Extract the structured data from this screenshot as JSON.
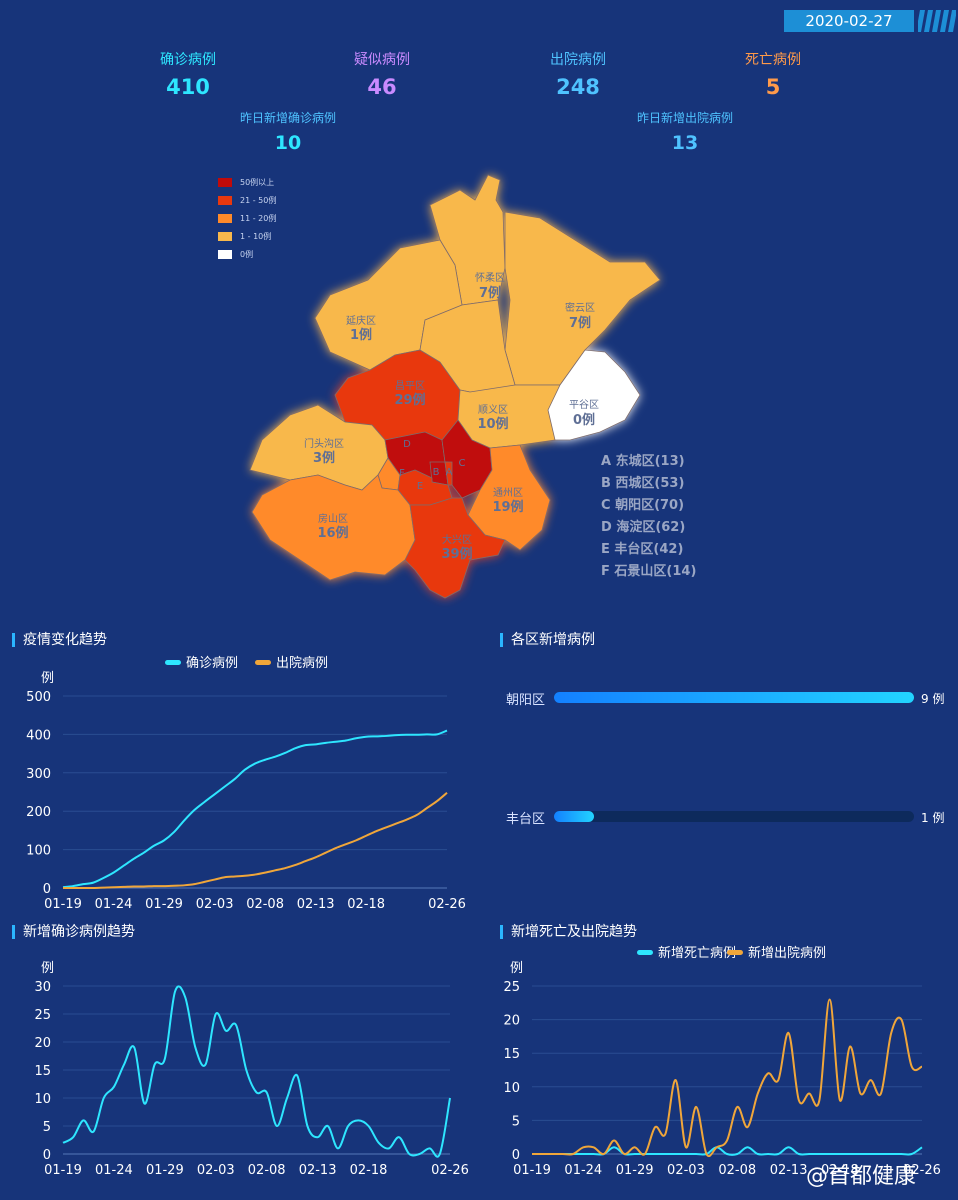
{
  "date": "2020-02-27",
  "stats": [
    {
      "label": "确诊病例",
      "value": "410",
      "label_color": "#2ee6ff",
      "value_color": "#2ee6ff"
    },
    {
      "label": "疑似病例",
      "value": "46",
      "label_color": "#c98bff",
      "value_color": "#c98bff"
    },
    {
      "label": "出院病例",
      "value": "248",
      "label_color": "#4fc3ff",
      "value_color": "#4fc3ff"
    },
    {
      "label": "死亡病例",
      "value": "5",
      "label_color": "#ff9a4a",
      "value_color": "#ff9a4a"
    }
  ],
  "new_stats": [
    {
      "label": "昨日新增确诊病例",
      "value": "10"
    },
    {
      "label": "昨日新增出院病例",
      "value": "13"
    }
  ],
  "map": {
    "legend": [
      {
        "label": "50例以上",
        "color": "#c00a0a"
      },
      {
        "label": "21 - 50例",
        "color": "#e8380f"
      },
      {
        "label": "11 - 20例",
        "color": "#ff8a2a"
      },
      {
        "label": "1 - 10例",
        "color": "#f8b84c"
      },
      {
        "label": "0例",
        "color": "#ffffff"
      }
    ],
    "districts": [
      {
        "name": "怀柔区",
        "value": "7例"
      },
      {
        "name": "密云区",
        "value": "7例"
      },
      {
        "name": "延庆区",
        "value": "1例"
      },
      {
        "name": "昌平区",
        "value": "29例"
      },
      {
        "name": "平谷区",
        "value": "0例"
      },
      {
        "name": "顺义区",
        "value": "10例"
      },
      {
        "name": "门头沟区",
        "value": "3例"
      },
      {
        "name": "通州区",
        "value": "19例"
      },
      {
        "name": "房山区",
        "value": "16例"
      },
      {
        "name": "大兴区",
        "value": "39例"
      }
    ],
    "city_letters": [
      "A",
      "B",
      "C",
      "D",
      "E",
      "F"
    ],
    "city_key": [
      "A 东城区(13)",
      "B 西城区(53)",
      "C 朝阳区(70)",
      "D 海淀区(62)",
      "E 丰台区(42)",
      "F 石景山区(14)"
    ]
  },
  "sections": {
    "trend": "疫情变化趋势",
    "district_new": "各区新增病例",
    "new_confirmed": "新增确诊病例趋势",
    "new_death_discharge": "新增死亡及出院趋势"
  },
  "district_bars": [
    {
      "name": "朝阳区",
      "value": 9,
      "label": "9 例",
      "max": 9
    },
    {
      "name": "丰台区",
      "value": 1,
      "label": "1 例",
      "max": 9
    }
  ],
  "watermark": "@首都健康",
  "chart_data": [
    {
      "type": "line",
      "title": "疫情变化趋势",
      "ylabel": "例",
      "ylim": [
        0,
        500
      ],
      "yticks": [
        0,
        100,
        200,
        300,
        400,
        500
      ],
      "xticks": [
        "01-19",
        "01-24",
        "01-29",
        "02-03",
        "02-08",
        "02-13",
        "02-18",
        "02-26"
      ],
      "x": [
        "01-19",
        "01-20",
        "01-21",
        "01-22",
        "01-23",
        "01-24",
        "01-25",
        "01-26",
        "01-27",
        "01-28",
        "01-29",
        "01-30",
        "01-31",
        "02-01",
        "02-02",
        "02-03",
        "02-04",
        "02-05",
        "02-06",
        "02-07",
        "02-08",
        "02-09",
        "02-10",
        "02-11",
        "02-12",
        "02-13",
        "02-14",
        "02-15",
        "02-16",
        "02-17",
        "02-18",
        "02-19",
        "02-20",
        "02-21",
        "02-22",
        "02-23",
        "02-24",
        "02-25",
        "02-26"
      ],
      "series": [
        {
          "name": "确诊病例",
          "color": "#2ee6ff",
          "values": [
            2,
            5,
            10,
            14,
            26,
            40,
            58,
            76,
            92,
            110,
            124,
            146,
            176,
            203,
            224,
            244,
            264,
            284,
            308,
            324,
            334,
            342,
            352,
            364,
            372,
            374,
            378,
            381,
            384,
            390,
            394,
            395,
            396,
            398,
            399,
            399,
            400,
            400,
            410
          ]
        },
        {
          "name": "出院病例",
          "color": "#f0a63a",
          "values": [
            0,
            0,
            0,
            0,
            1,
            2,
            3,
            4,
            4,
            5,
            5,
            6,
            7,
            10,
            16,
            22,
            28,
            30,
            32,
            35,
            40,
            46,
            52,
            60,
            70,
            80,
            92,
            104,
            114,
            124,
            136,
            148,
            158,
            168,
            178,
            190,
            208,
            226,
            248
          ]
        }
      ]
    },
    {
      "type": "bar",
      "title": "各区新增病例",
      "categories": [
        "朝阳区",
        "丰台区"
      ],
      "values": [
        9,
        1
      ]
    },
    {
      "type": "line",
      "title": "新增确诊病例趋势",
      "ylabel": "例",
      "ylim": [
        0,
        30
      ],
      "yticks": [
        0,
        5,
        10,
        15,
        20,
        25,
        30
      ],
      "xticks": [
        "01-19",
        "01-24",
        "01-29",
        "02-03",
        "02-08",
        "02-13",
        "02-18",
        "02-26"
      ],
      "x": [
        "01-19",
        "01-20",
        "01-21",
        "01-22",
        "01-23",
        "01-24",
        "01-25",
        "01-26",
        "01-27",
        "01-28",
        "01-29",
        "01-30",
        "01-31",
        "02-01",
        "02-02",
        "02-03",
        "02-04",
        "02-05",
        "02-06",
        "02-07",
        "02-08",
        "02-09",
        "02-10",
        "02-11",
        "02-12",
        "02-13",
        "02-14",
        "02-15",
        "02-16",
        "02-17",
        "02-18",
        "02-19",
        "02-20",
        "02-21",
        "02-22",
        "02-23",
        "02-24",
        "02-25",
        "02-26"
      ],
      "series": [
        {
          "name": "新增确诊病例",
          "color": "#2ee6ff",
          "values": [
            2,
            3,
            6,
            4,
            10,
            12,
            16,
            19,
            9,
            16,
            17,
            29,
            28,
            19,
            16,
            25,
            22,
            23,
            15,
            11,
            11,
            5,
            10,
            14,
            5,
            3,
            5,
            1,
            5,
            6,
            5,
            2,
            1,
            3,
            0,
            0,
            1,
            0,
            10
          ]
        }
      ]
    },
    {
      "type": "line",
      "title": "新增死亡及出院趋势",
      "ylabel": "例",
      "ylim": [
        0,
        25
      ],
      "yticks": [
        0,
        5,
        10,
        15,
        20,
        25
      ],
      "xticks": [
        "01-19",
        "01-24",
        "01-29",
        "02-03",
        "02-08",
        "02-13",
        "02-18",
        "02-26"
      ],
      "x": [
        "01-19",
        "01-20",
        "01-21",
        "01-22",
        "01-23",
        "01-24",
        "01-25",
        "01-26",
        "01-27",
        "01-28",
        "01-29",
        "01-30",
        "01-31",
        "02-01",
        "02-02",
        "02-03",
        "02-04",
        "02-05",
        "02-06",
        "02-07",
        "02-08",
        "02-09",
        "02-10",
        "02-11",
        "02-12",
        "02-13",
        "02-14",
        "02-15",
        "02-16",
        "02-17",
        "02-18",
        "02-19",
        "02-20",
        "02-21",
        "02-22",
        "02-23",
        "02-24",
        "02-25",
        "02-26"
      ],
      "series": [
        {
          "name": "新增死亡病例",
          "color": "#2ee6ff",
          "values": [
            0,
            0,
            0,
            0,
            0,
            0,
            0,
            0,
            1,
            0,
            0,
            0,
            0,
            0,
            0,
            0,
            0,
            0,
            1,
            0,
            0,
            1,
            0,
            0,
            0,
            1,
            0,
            0,
            0,
            0,
            0,
            0,
            0,
            0,
            0,
            0,
            0,
            0,
            1
          ]
        },
        {
          "name": "新增出院病例",
          "color": "#f0a63a",
          "values": [
            0,
            0,
            0,
            0,
            0,
            1,
            1,
            0,
            2,
            0,
            1,
            0,
            4,
            3,
            11,
            1,
            7,
            0,
            1,
            2,
            7,
            4,
            9,
            12,
            11,
            18,
            8,
            9,
            8,
            23,
            8,
            16,
            9,
            11,
            9,
            18,
            20,
            13,
            13
          ]
        }
      ]
    }
  ]
}
